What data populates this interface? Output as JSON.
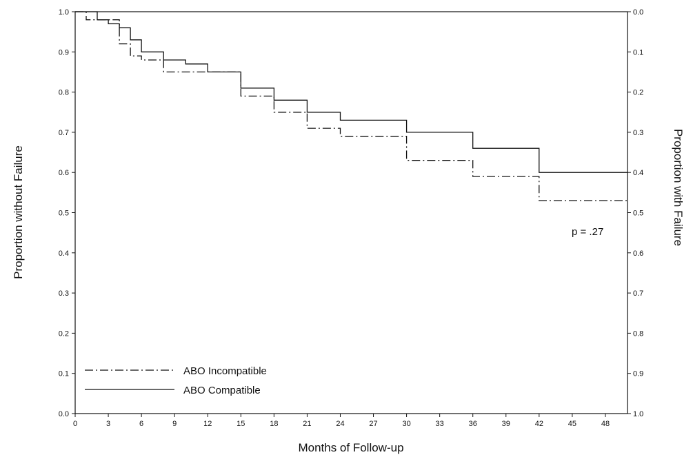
{
  "chart_data": {
    "type": "line",
    "subtype": "kaplan-meier step",
    "xlabel": "Months of Follow-up",
    "ylabel": "Proportion without Failure",
    "y2label": "Proportion with Failure",
    "xlim": [
      0,
      50
    ],
    "ylim": [
      0,
      1
    ],
    "y2lim": [
      1,
      0
    ],
    "xticks": [
      "0",
      "3",
      "6",
      "9",
      "12",
      "15",
      "18",
      "21",
      "24",
      "27",
      "30",
      "33",
      "36",
      "39",
      "42",
      "45",
      "48"
    ],
    "yticks": [
      "0.0",
      "0.1",
      "0.2",
      "0.3",
      "0.4",
      "0.5",
      "0.6",
      "0.7",
      "0.8",
      "0.9",
      "1.0"
    ],
    "y2ticks": [
      "1.0",
      "0.9",
      "0.8",
      "0.7",
      "0.6",
      "0.5",
      "0.4",
      "0.3",
      "0.2",
      "0.1",
      "0.0"
    ],
    "grid": false,
    "legend_position": "bottom-left",
    "annotation": "p = .27",
    "series": [
      {
        "name": "ABO Incompatible",
        "line_style": "dash-dot",
        "x": [
          0,
          1,
          4,
          5,
          6,
          8,
          15,
          18,
          21,
          24,
          30,
          36,
          42,
          50
        ],
        "y": [
          1.0,
          0.98,
          0.92,
          0.89,
          0.88,
          0.85,
          0.79,
          0.75,
          0.71,
          0.69,
          0.63,
          0.59,
          0.53,
          0.53
        ]
      },
      {
        "name": "ABO Compatible",
        "line_style": "solid",
        "x": [
          0,
          1,
          2,
          3,
          4,
          5,
          6,
          8,
          10,
          12,
          15,
          18,
          21,
          24,
          30,
          36,
          42,
          50
        ],
        "y": [
          1.0,
          1.0,
          0.98,
          0.97,
          0.96,
          0.93,
          0.9,
          0.88,
          0.87,
          0.85,
          0.81,
          0.78,
          0.75,
          0.73,
          0.7,
          0.66,
          0.6,
          0.6
        ]
      }
    ]
  }
}
